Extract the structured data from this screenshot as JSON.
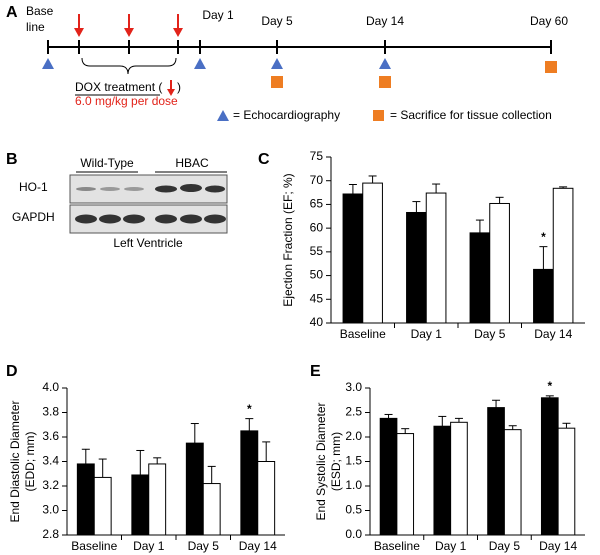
{
  "timeline": {
    "panel": "A",
    "baseline": [
      "Base",
      "line"
    ],
    "days": [
      "Day 1",
      "Day 5",
      "Day 14",
      "Day 60"
    ],
    "treatment": "DOX treatment (",
    "treatment_close": ")",
    "dose": "6.0 mg/kg per dose",
    "legend": [
      "= Echocardiography",
      "= Sacrifice for tissue collection"
    ]
  },
  "blot": {
    "panel": "B",
    "groups": [
      "Wild-Type",
      "HBAC"
    ],
    "rows": [
      "HO-1",
      "GAPDH"
    ],
    "tissue": "Left Ventricle"
  },
  "chart_data": [
    {
      "type": "bar",
      "panel": "C",
      "ylabel": [
        "Ejection Fraction (EF; %)"
      ],
      "categories": [
        "Baseline",
        "Day 1",
        "Day 5",
        "Day 14"
      ],
      "series": [
        {
          "color": "#000000",
          "values": [
            67.2,
            63.3,
            59,
            51.3
          ],
          "errors": [
            2,
            2.3,
            2.7,
            4.8
          ],
          "annotations": [
            {
              "text": "*",
              "category": "Day 14"
            }
          ]
        },
        {
          "color": "#ffffff",
          "values": [
            69.5,
            67.4,
            65.2,
            68.4
          ],
          "errors": [
            1.5,
            1.9,
            1.3,
            0.3
          ]
        }
      ],
      "ylim": [
        40,
        75
      ],
      "yticks": [
        40,
        45,
        50,
        55,
        60,
        65,
        70,
        75
      ]
    },
    {
      "type": "bar",
      "panel": "D",
      "ylabel": [
        "End Diastolic Diameter",
        "(EDD; mm)"
      ],
      "categories": [
        "Baseline",
        "Day 1",
        "Day 5",
        "Day 14"
      ],
      "series": [
        {
          "color": "#000000",
          "values": [
            3.38,
            3.29,
            3.55,
            3.65
          ],
          "errors": [
            0.12,
            0.2,
            0.16,
            0.1
          ],
          "annotations": [
            {
              "text": "*",
              "category": "Day 14"
            }
          ]
        },
        {
          "color": "#ffffff",
          "values": [
            3.27,
            3.38,
            3.22,
            3.4
          ],
          "errors": [
            0.15,
            0.05,
            0.14,
            0.16
          ]
        }
      ],
      "ylim": [
        2.8,
        4.0
      ],
      "yticks": [
        2.8,
        {
          "value": 3,
          "label": "3.0"
        },
        3.2,
        3.4,
        3.6,
        3.8,
        {
          "value": 4,
          "label": "4.0"
        }
      ]
    },
    {
      "type": "bar",
      "panel": "E",
      "ylabel": [
        "End Systolic Diameter",
        "(ESD; mm)"
      ],
      "categories": [
        "Baseline",
        "Day 1",
        "Day 5",
        "Day 14"
      ],
      "series": [
        {
          "color": "#000000",
          "values": [
            2.38,
            2.22,
            2.6,
            2.8
          ],
          "errors": [
            0.08,
            0.2,
            0.15,
            0.04
          ],
          "annotations": [
            {
              "text": "*",
              "category": "Day 14"
            }
          ]
        },
        {
          "color": "#ffffff",
          "values": [
            2.07,
            2.3,
            2.15,
            2.18
          ],
          "errors": [
            0.1,
            0.08,
            0.08,
            0.1
          ]
        }
      ],
      "ylim": [
        0,
        3.0
      ],
      "yticks": [
        {
          "value": 0,
          "label": "0.0"
        },
        0.5,
        {
          "value": 1,
          "label": "1.0"
        },
        1.5,
        {
          "value": 2,
          "label": "2.0"
        },
        2.5,
        {
          "value": 3,
          "label": "3.0"
        }
      ]
    }
  ]
}
